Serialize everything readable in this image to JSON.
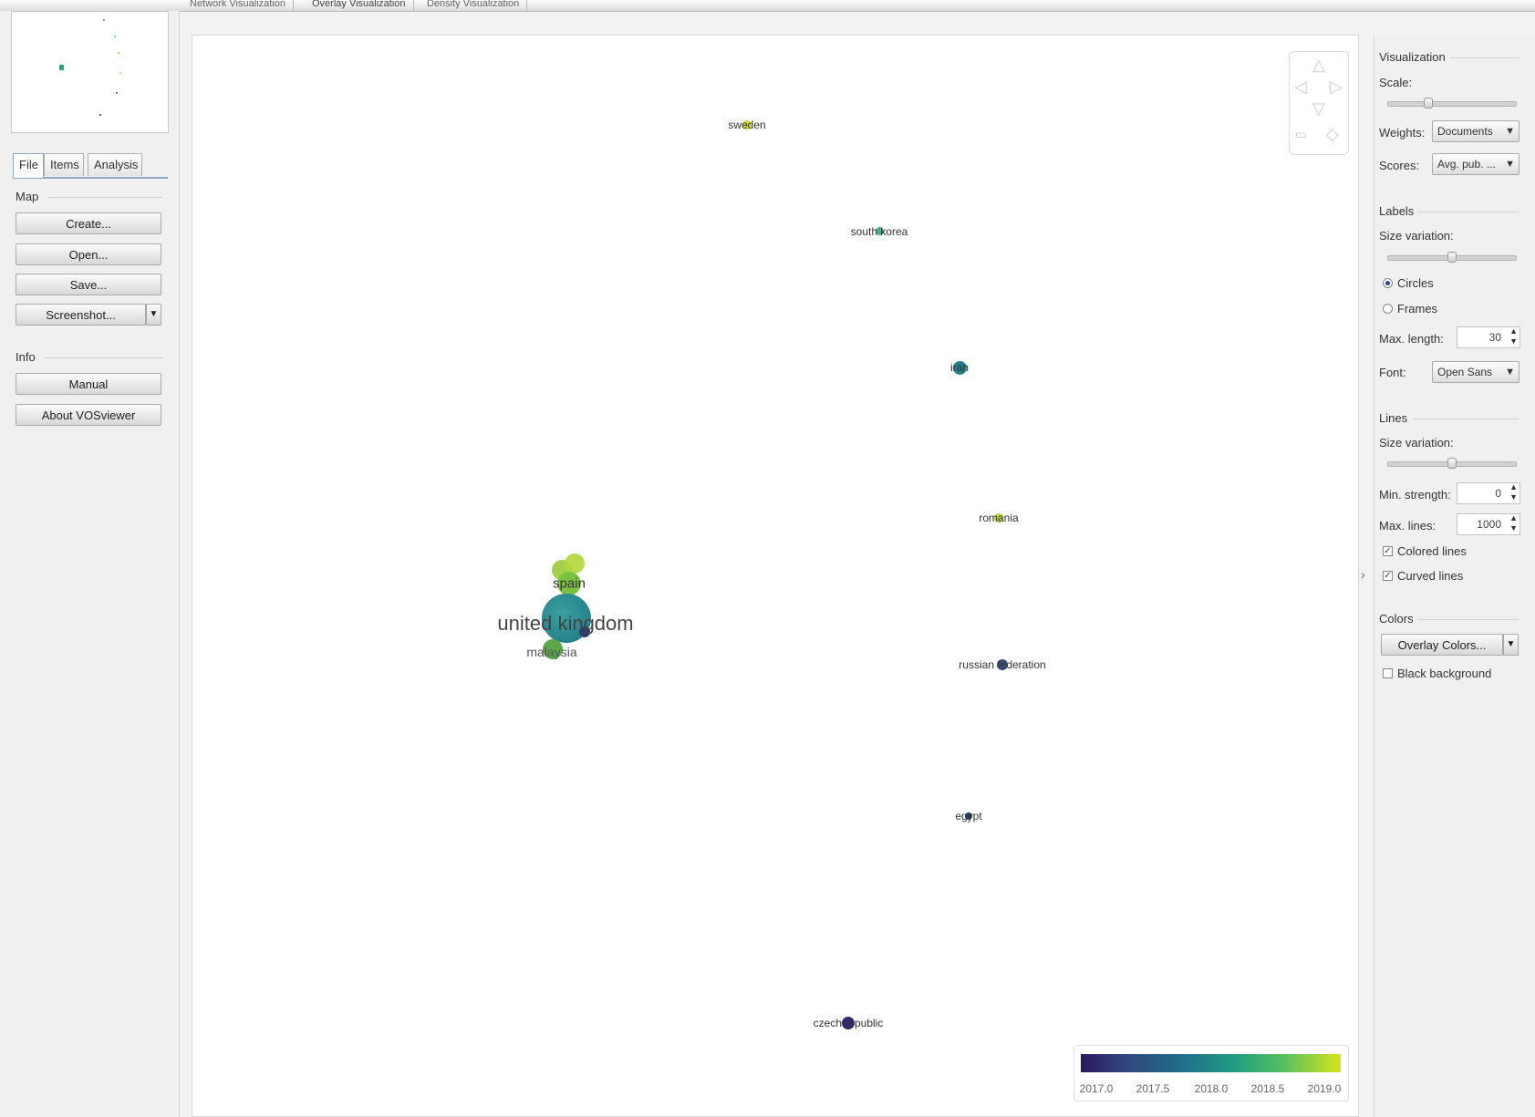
{
  "tabs": {
    "network": "Network Visualization",
    "overlay": "Overlay Visualization",
    "density": "Density Visualization"
  },
  "left": {
    "tabs": [
      "File",
      "Items",
      "Analysis"
    ],
    "map_section": "Map",
    "create": "Create...",
    "open": "Open...",
    "save": "Save...",
    "screenshot": "Screenshot...",
    "info_section": "Info",
    "manual": "Manual",
    "about": "About VOSviewer"
  },
  "map": {
    "items": [
      {
        "label": "sweden",
        "color": "#c7dd2a"
      },
      {
        "label": "south korea",
        "color": "#3fb48c"
      },
      {
        "label": "iran",
        "color": "#22808a"
      },
      {
        "label": "romania",
        "color": "#b7d632"
      },
      {
        "label": "spain",
        "color": "#7ac143"
      },
      {
        "label": "united kingdom",
        "color": "#2a8a8f"
      },
      {
        "label": "malaysia",
        "color": "#5aa848"
      },
      {
        "label": "russian federation",
        "color": "#3a4f7e"
      },
      {
        "label": "egypt",
        "color": "#2b3c6a"
      },
      {
        "label": "czech republic",
        "color": "#2f2a6b"
      }
    ]
  },
  "legend": {
    "ticks": [
      "2017.0",
      "2017.5",
      "2018.0",
      "2018.5",
      "2019.0"
    ]
  },
  "right": {
    "visualization": "Visualization",
    "scale": "Scale:",
    "scale_value": 0.3,
    "weights": "Weights:",
    "weights_value": "Documents",
    "scores": "Scores:",
    "scores_value": "Avg. pub. ...",
    "labels": "Labels",
    "size_variation": "Size variation:",
    "label_size_value": 0.5,
    "circles": "Circles",
    "frames": "Frames",
    "max_length": "Max. length:",
    "max_length_value": "30",
    "font": "Font:",
    "font_value": "Open Sans",
    "lines": "Lines",
    "lines_size_variation": "Size variation:",
    "lines_size_value": 0.5,
    "min_strength": "Min. strength:",
    "min_strength_value": "0",
    "max_lines": "Max. lines:",
    "max_lines_value": "1000",
    "colored_lines": "Colored lines",
    "curved_lines": "Curved lines",
    "colors": "Colors",
    "overlay_colors": "Overlay Colors...",
    "black_background": "Black background"
  }
}
